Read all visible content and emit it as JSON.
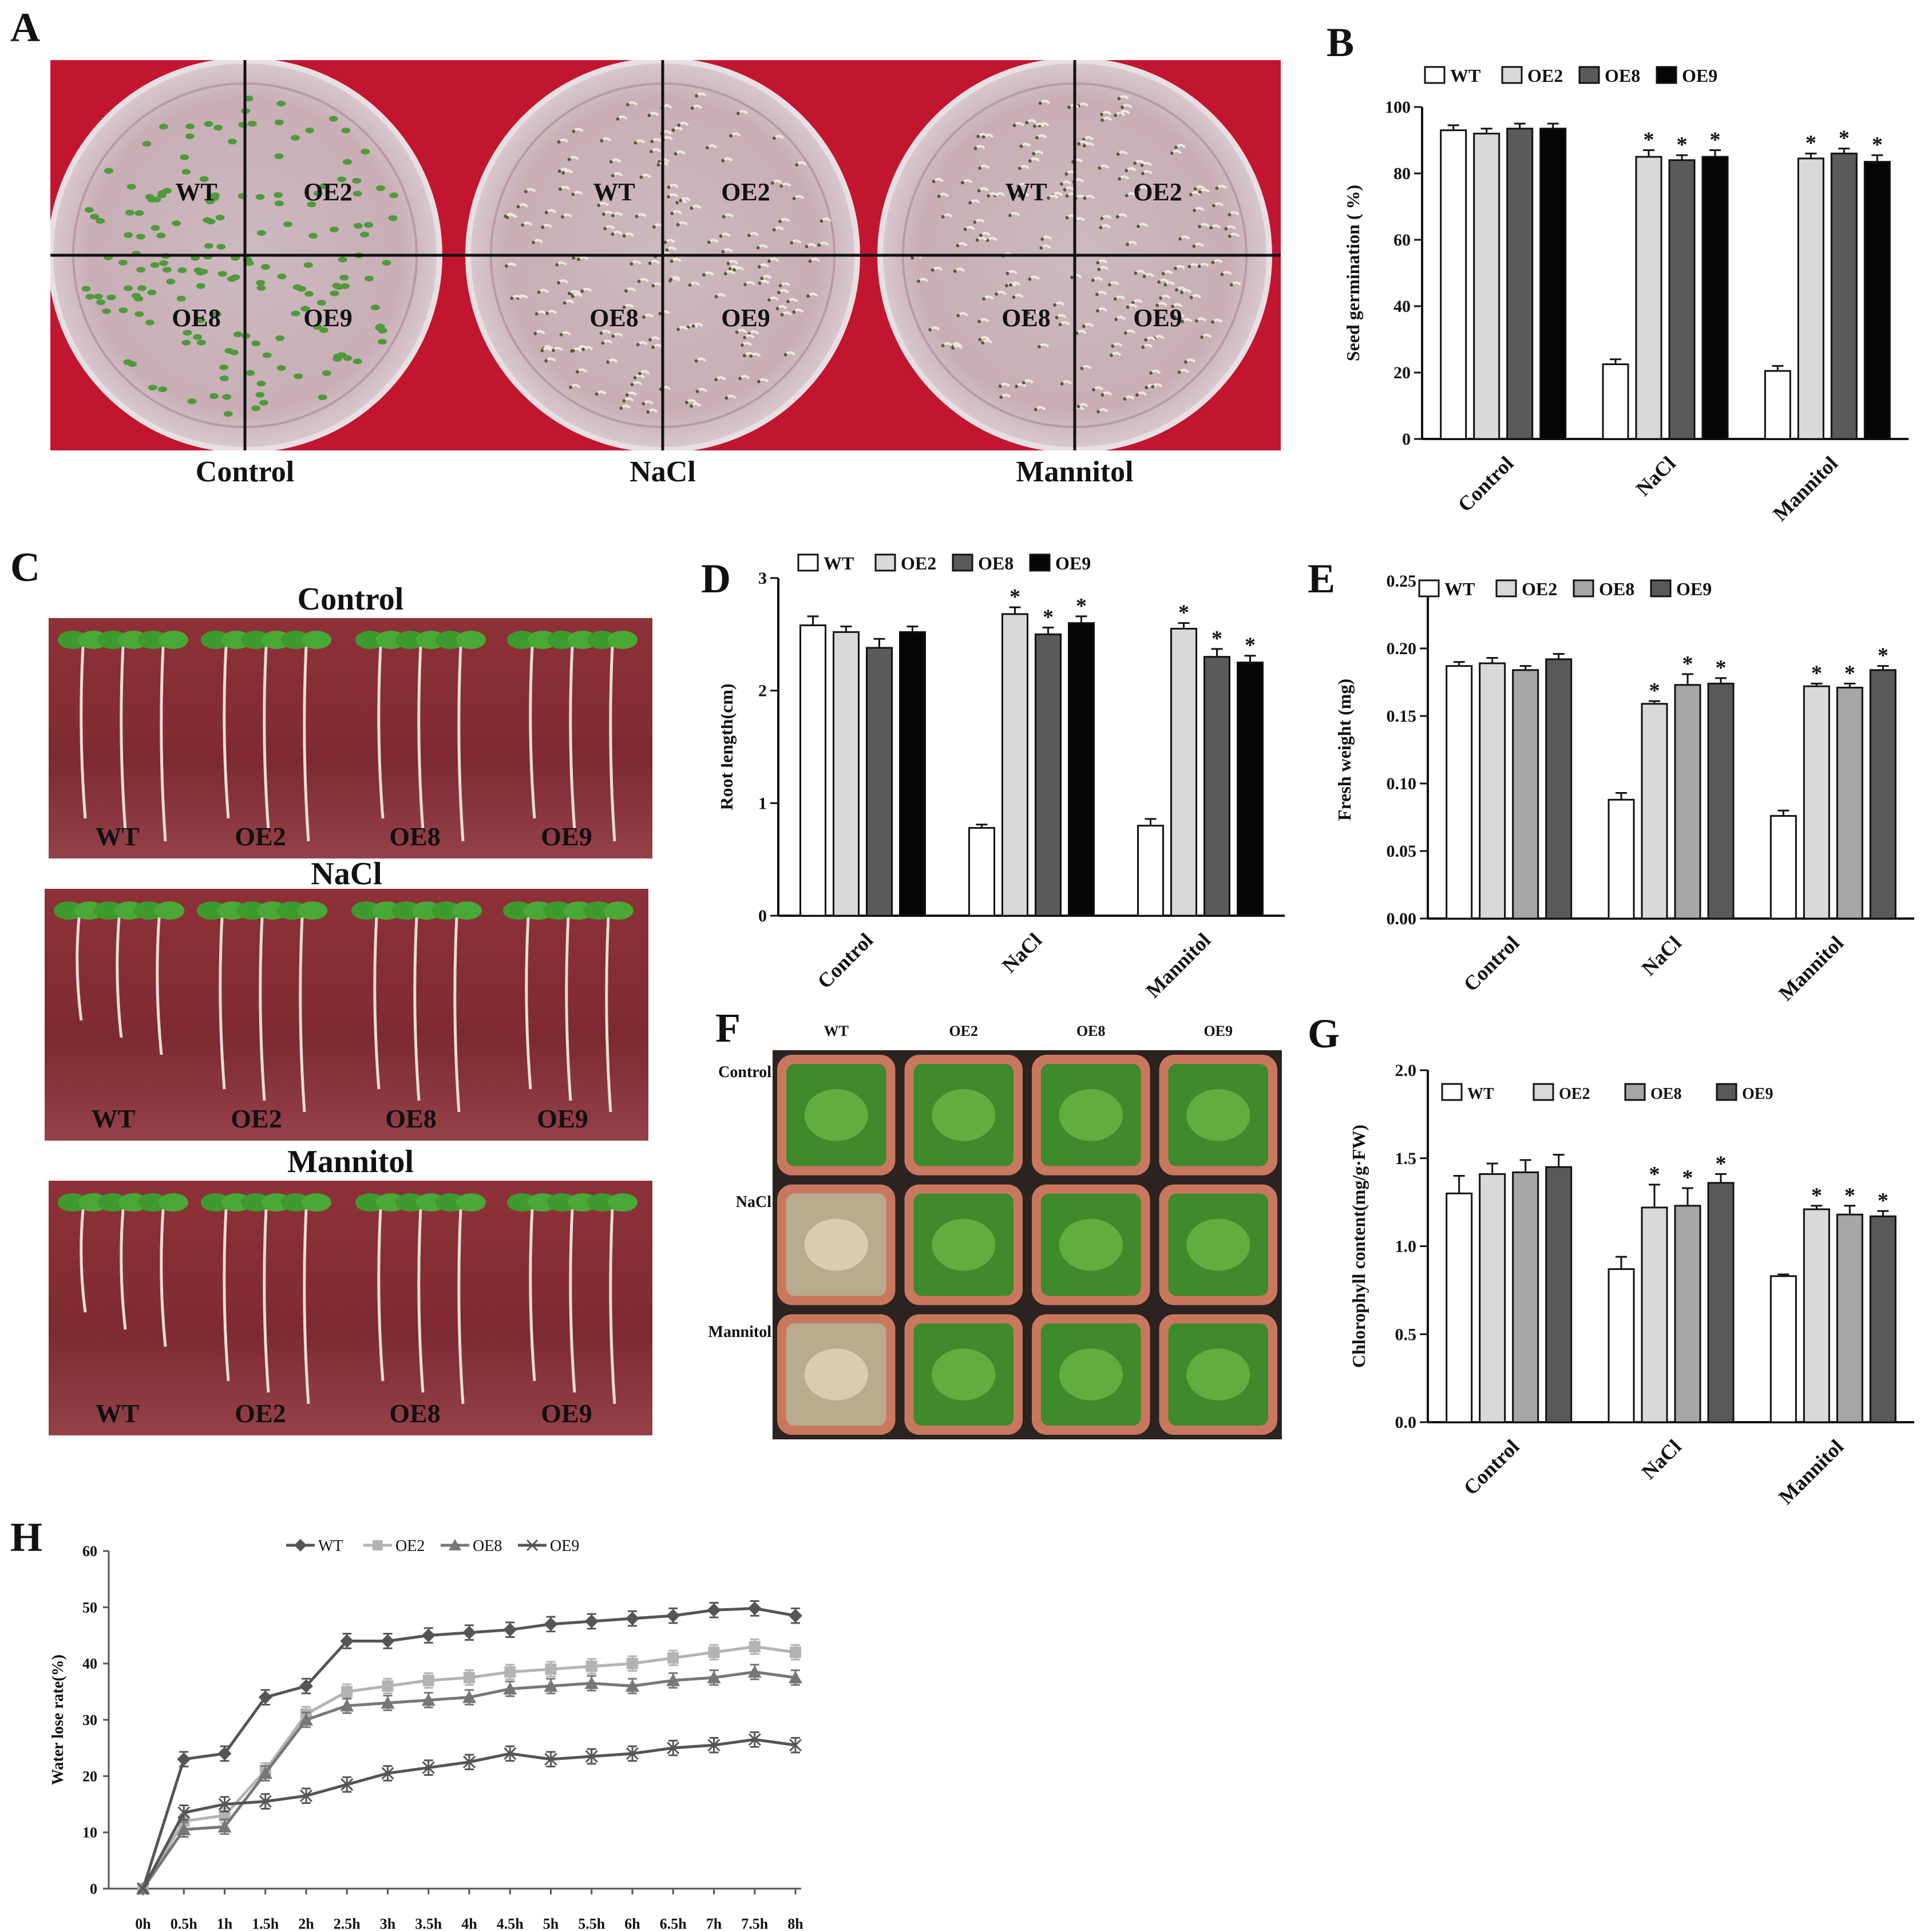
{
  "panels": {
    "A": {
      "label": "A",
      "plates": [
        {
          "condition": "Control",
          "quadrants": [
            "WT",
            "OE2",
            "OE8",
            "OE9"
          ]
        },
        {
          "condition": "NaCl",
          "quadrants": [
            "WT",
            "OE2",
            "OE8",
            "OE9"
          ]
        },
        {
          "condition": "Mannitol",
          "quadrants": [
            "WT",
            "OE2",
            "OE8",
            "OE9"
          ]
        }
      ]
    },
    "C": {
      "label": "C",
      "strips": [
        {
          "condition": "Control",
          "lines": [
            "WT",
            "OE2",
            "OE8",
            "OE9"
          ]
        },
        {
          "condition": "NaCl",
          "lines": [
            "WT",
            "OE2",
            "OE8",
            "OE9"
          ]
        },
        {
          "condition": "Mannitol",
          "lines": [
            "WT",
            "OE2",
            "OE8",
            "OE9"
          ]
        }
      ]
    },
    "F": {
      "label": "F",
      "columns": [
        "WT",
        "OE2",
        "OE8",
        "OE9"
      ],
      "rows": [
        "Control",
        "NaCl",
        "Mannitol"
      ]
    }
  },
  "colors": {
    "WT": "#ffffff",
    "OE2": "#d9d9d9",
    "OE8_dark": "#5a5a5a",
    "OE8_mid": "#a6a6a6",
    "OE9_black": "#050505",
    "OE9_dark": "#595959",
    "plate_bg": "#c0172e",
    "strip_bg": "#8a2c35",
    "seedling": "#3e9a2e"
  },
  "chart_data": [
    {
      "panel": "B",
      "type": "bar",
      "ylabel": "Seed germination (  %)",
      "ylim": [
        0,
        100
      ],
      "yticks": [
        "0",
        "20",
        "40",
        "60",
        "80",
        "100"
      ],
      "categories": [
        "Control",
        "NaCl",
        "Mannitol"
      ],
      "legend": [
        "WT",
        "OE2",
        "OE8",
        "OE9"
      ],
      "series": [
        {
          "name": "WT",
          "values": [
            93,
            22.5,
            20.5
          ],
          "err": [
            1.5,
            1.5,
            1.5
          ],
          "star": [
            false,
            false,
            false
          ]
        },
        {
          "name": "OE2",
          "values": [
            92,
            85,
            84.5
          ],
          "err": [
            1.5,
            2,
            1.5
          ],
          "star": [
            false,
            true,
            true
          ]
        },
        {
          "name": "OE8",
          "values": [
            93.5,
            84,
            86
          ],
          "err": [
            1.5,
            1.5,
            1.5
          ],
          "star": [
            false,
            true,
            true
          ]
        },
        {
          "name": "OE9",
          "values": [
            93.5,
            85,
            83.5
          ],
          "err": [
            1.5,
            2,
            2
          ],
          "star": [
            false,
            true,
            true
          ]
        }
      ]
    },
    {
      "panel": "D",
      "type": "bar",
      "ylabel": "Root length(cm)",
      "ylim": [
        0,
        3
      ],
      "yticks": [
        "0",
        "1",
        "2",
        "3"
      ],
      "categories": [
        "Control",
        "NaCl",
        "Mannitol"
      ],
      "legend": [
        "WT",
        "OE2",
        "OE8",
        "OE9"
      ],
      "series": [
        {
          "name": "WT",
          "values": [
            2.58,
            0.78,
            0.8
          ],
          "err": [
            0.08,
            0.03,
            0.06
          ],
          "star": [
            false,
            false,
            false
          ]
        },
        {
          "name": "OE2",
          "values": [
            2.52,
            2.68,
            2.55
          ],
          "err": [
            0.05,
            0.06,
            0.05
          ],
          "star": [
            false,
            true,
            true
          ]
        },
        {
          "name": "OE8",
          "values": [
            2.38,
            2.5,
            2.3
          ],
          "err": [
            0.08,
            0.06,
            0.07
          ],
          "star": [
            false,
            true,
            true
          ]
        },
        {
          "name": "OE9",
          "values": [
            2.52,
            2.6,
            2.25
          ],
          "err": [
            0.05,
            0.06,
            0.06
          ],
          "star": [
            false,
            true,
            true
          ]
        }
      ]
    },
    {
      "panel": "E",
      "type": "bar",
      "ylabel": "Fresh weight (mg)",
      "ylim": [
        0,
        0.25
      ],
      "yticks": [
        "0.00",
        "0.05",
        "0.10",
        "0.15",
        "0.20",
        "0.25"
      ],
      "categories": [
        "Control",
        "NaCl",
        "Mannitol"
      ],
      "legend": [
        "WT",
        "OE2",
        "OE8",
        "OE9"
      ],
      "series": [
        {
          "name": "WT",
          "values": [
            0.187,
            0.088,
            0.076
          ],
          "err": [
            0.003,
            0.005,
            0.004
          ],
          "star": [
            false,
            false,
            false
          ]
        },
        {
          "name": "OE2",
          "values": [
            0.189,
            0.159,
            0.172
          ],
          "err": [
            0.004,
            0.002,
            0.002
          ],
          "star": [
            false,
            true,
            true
          ]
        },
        {
          "name": "OE8",
          "values": [
            0.184,
            0.173,
            0.171
          ],
          "err": [
            0.003,
            0.008,
            0.003
          ],
          "star": [
            false,
            true,
            true
          ]
        },
        {
          "name": "OE9",
          "values": [
            0.192,
            0.174,
            0.184
          ],
          "err": [
            0.004,
            0.004,
            0.003
          ],
          "star": [
            false,
            true,
            true
          ]
        }
      ]
    },
    {
      "panel": "G",
      "type": "bar",
      "ylabel": "Chlorophyll content(mg/g·FW)",
      "ylim": [
        0,
        2.0
      ],
      "yticks": [
        "0.0",
        "0.5",
        "1.0",
        "1.5",
        "2.0"
      ],
      "categories": [
        "Control",
        "NaCl",
        "Mannitol"
      ],
      "legend": [
        "WT",
        "OE2",
        "OE8",
        "OE9"
      ],
      "series": [
        {
          "name": "WT",
          "values": [
            1.3,
            0.87,
            0.83
          ],
          "err": [
            0.1,
            0.07,
            0.01
          ],
          "star": [
            false,
            false,
            false
          ]
        },
        {
          "name": "OE2",
          "values": [
            1.41,
            1.22,
            1.21
          ],
          "err": [
            0.06,
            0.13,
            0.02
          ],
          "star": [
            false,
            true,
            true
          ]
        },
        {
          "name": "OE8",
          "values": [
            1.42,
            1.23,
            1.18
          ],
          "err": [
            0.07,
            0.1,
            0.05
          ],
          "star": [
            false,
            true,
            true
          ]
        },
        {
          "name": "OE9",
          "values": [
            1.45,
            1.36,
            1.17
          ],
          "err": [
            0.07,
            0.05,
            0.03
          ],
          "star": [
            false,
            true,
            true
          ]
        }
      ]
    },
    {
      "panel": "H",
      "type": "line",
      "ylabel": "Water lose rate(%)",
      "ylim": [
        0,
        60
      ],
      "yticks": [
        "0",
        "10",
        "20",
        "30",
        "40",
        "50",
        "60"
      ],
      "x": [
        "0h",
        "0.5h",
        "1h",
        "1.5h",
        "2h",
        "2.5h",
        "3h",
        "3.5h",
        "4h",
        "4.5h",
        "5h",
        "5.5h",
        "6h",
        "6.5h",
        "7h",
        "7.5h",
        "8h"
      ],
      "series": [
        {
          "name": "WT",
          "marker": "diamond",
          "color": "#555555",
          "values": [
            0,
            23,
            24,
            34,
            36,
            44,
            44,
            45,
            45.5,
            46,
            47,
            47.5,
            48,
            48.5,
            49.5,
            49.8,
            48.5
          ]
        },
        {
          "name": "OE2",
          "marker": "square",
          "color": "#b3b3b3",
          "values": [
            0,
            12,
            13,
            21,
            31,
            35,
            36,
            37,
            37.5,
            38.5,
            39,
            39.5,
            40,
            41,
            42,
            43,
            42
          ]
        },
        {
          "name": "OE8",
          "marker": "triangle",
          "color": "#777777",
          "values": [
            0,
            10.5,
            11,
            20.5,
            30,
            32.5,
            33,
            33.5,
            34,
            35.5,
            36,
            36.5,
            36,
            37,
            37.5,
            38.5,
            37.5
          ]
        },
        {
          "name": "OE9",
          "marker": "x",
          "color": "#555555",
          "values": [
            0,
            13.5,
            15,
            15.5,
            16.5,
            18.5,
            20.5,
            21.5,
            22.5,
            24,
            23,
            23.5,
            24,
            25,
            25.5,
            26.5,
            25.5
          ]
        }
      ]
    }
  ]
}
